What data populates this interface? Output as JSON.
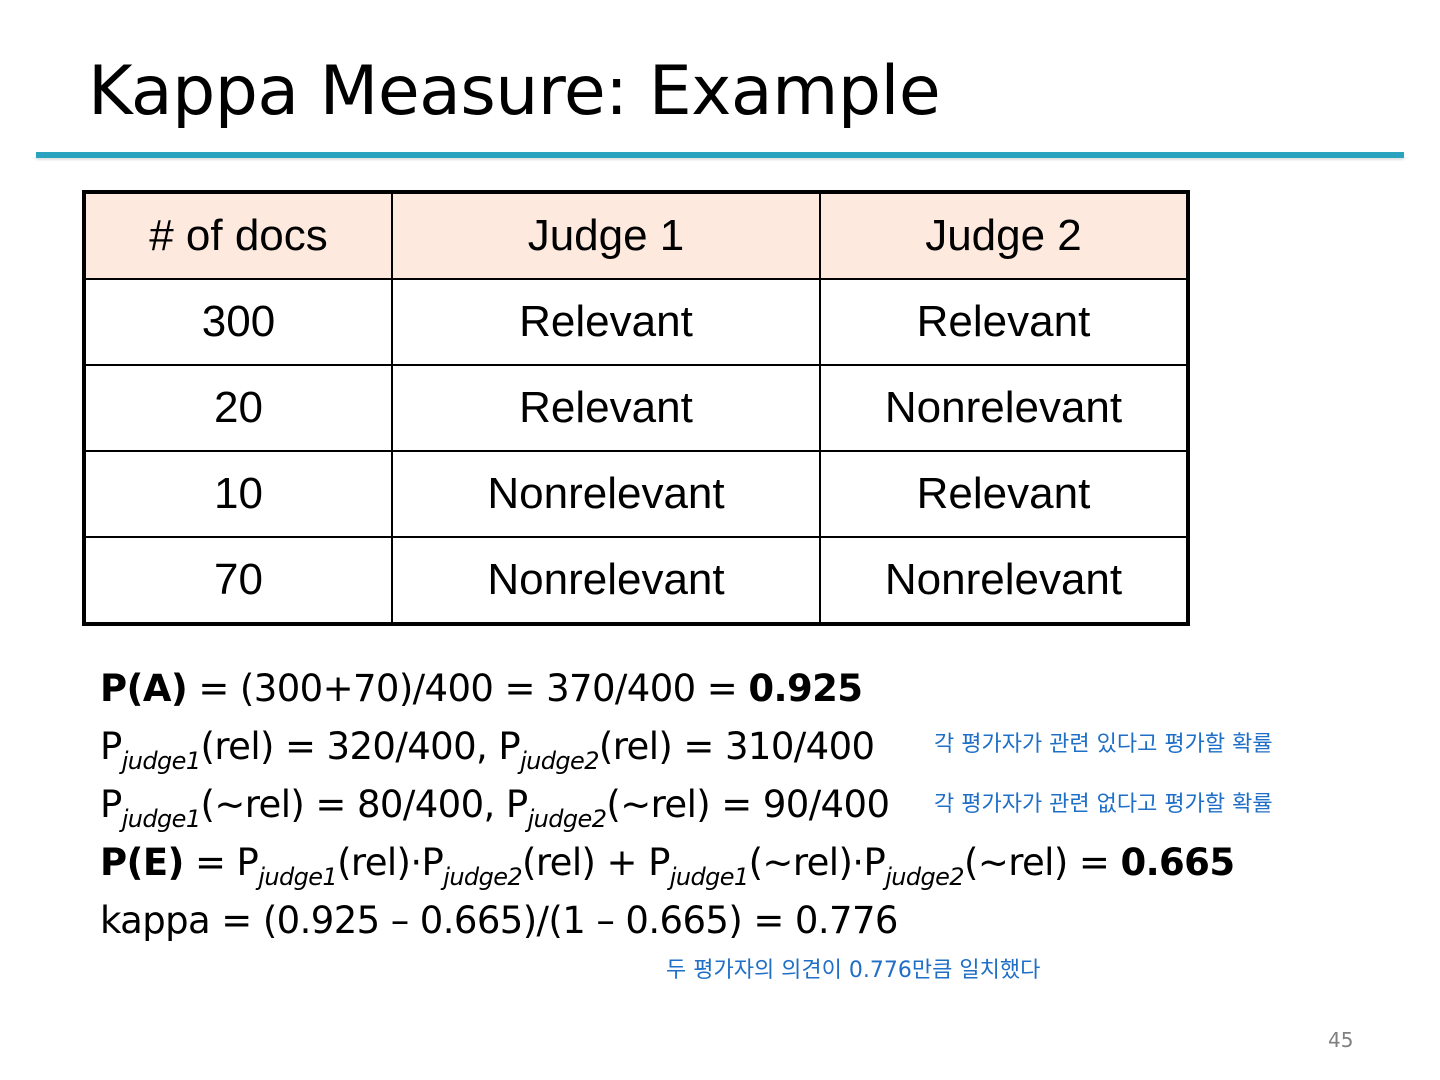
{
  "slide": {
    "title": "Kappa Measure: Example",
    "page_number": "45"
  },
  "table": {
    "headers": [
      "# of docs",
      "Judge 1",
      "Judge 2"
    ],
    "rows": [
      [
        "300",
        "Relevant",
        "Relevant"
      ],
      [
        "20",
        "Relevant",
        "Nonrelevant"
      ],
      [
        "10",
        "Nonrelevant",
        "Relevant"
      ],
      [
        "70",
        "Nonrelevant",
        "Nonrelevant"
      ]
    ],
    "header_bg_color": "#fde9de"
  },
  "formulas": {
    "pa": {
      "label": "P(A)",
      "expr": " = (300+70)/400 = 370/400 = ",
      "result": "0.925"
    },
    "p_rel": {
      "p1": "P",
      "sub1": "judge1",
      "part1": "(rel) = 320/400, ",
      "p2": "P",
      "sub2": "judge2",
      "part2": "(rel) = 310/400"
    },
    "p_notrel": {
      "p1": "P",
      "sub1": "judge1",
      "part1": "(~rel) = 80/400, ",
      "p2": "P",
      "sub2": "judge2",
      "part2": "(~rel) = 90/400"
    },
    "pe": {
      "label": "P(E)",
      "t1": " = P",
      "s1": "judge1",
      "t2": "(rel)·P",
      "s2": "judge2",
      "t3": "(rel) + P",
      "s3": "judge1",
      "t4": "(~rel)·P",
      "s4": "judge2",
      "t5": "(~rel) = ",
      "result": "0.665"
    },
    "kappa": "kappa = (0.925 – 0.665)/(1 – 0.665) = 0.776"
  },
  "notes": {
    "rel_note": "각 평가자가 관련 있다고 평가할 확률",
    "nonrel_note": "각 평가자가 관련 없다고 평가할 확률",
    "agreement_note": "두 평가자의 의견이 0.776만큼 일치했다"
  },
  "colors": {
    "accent_rule": "#2aa3bf",
    "note_text": "#1f6fc7"
  }
}
